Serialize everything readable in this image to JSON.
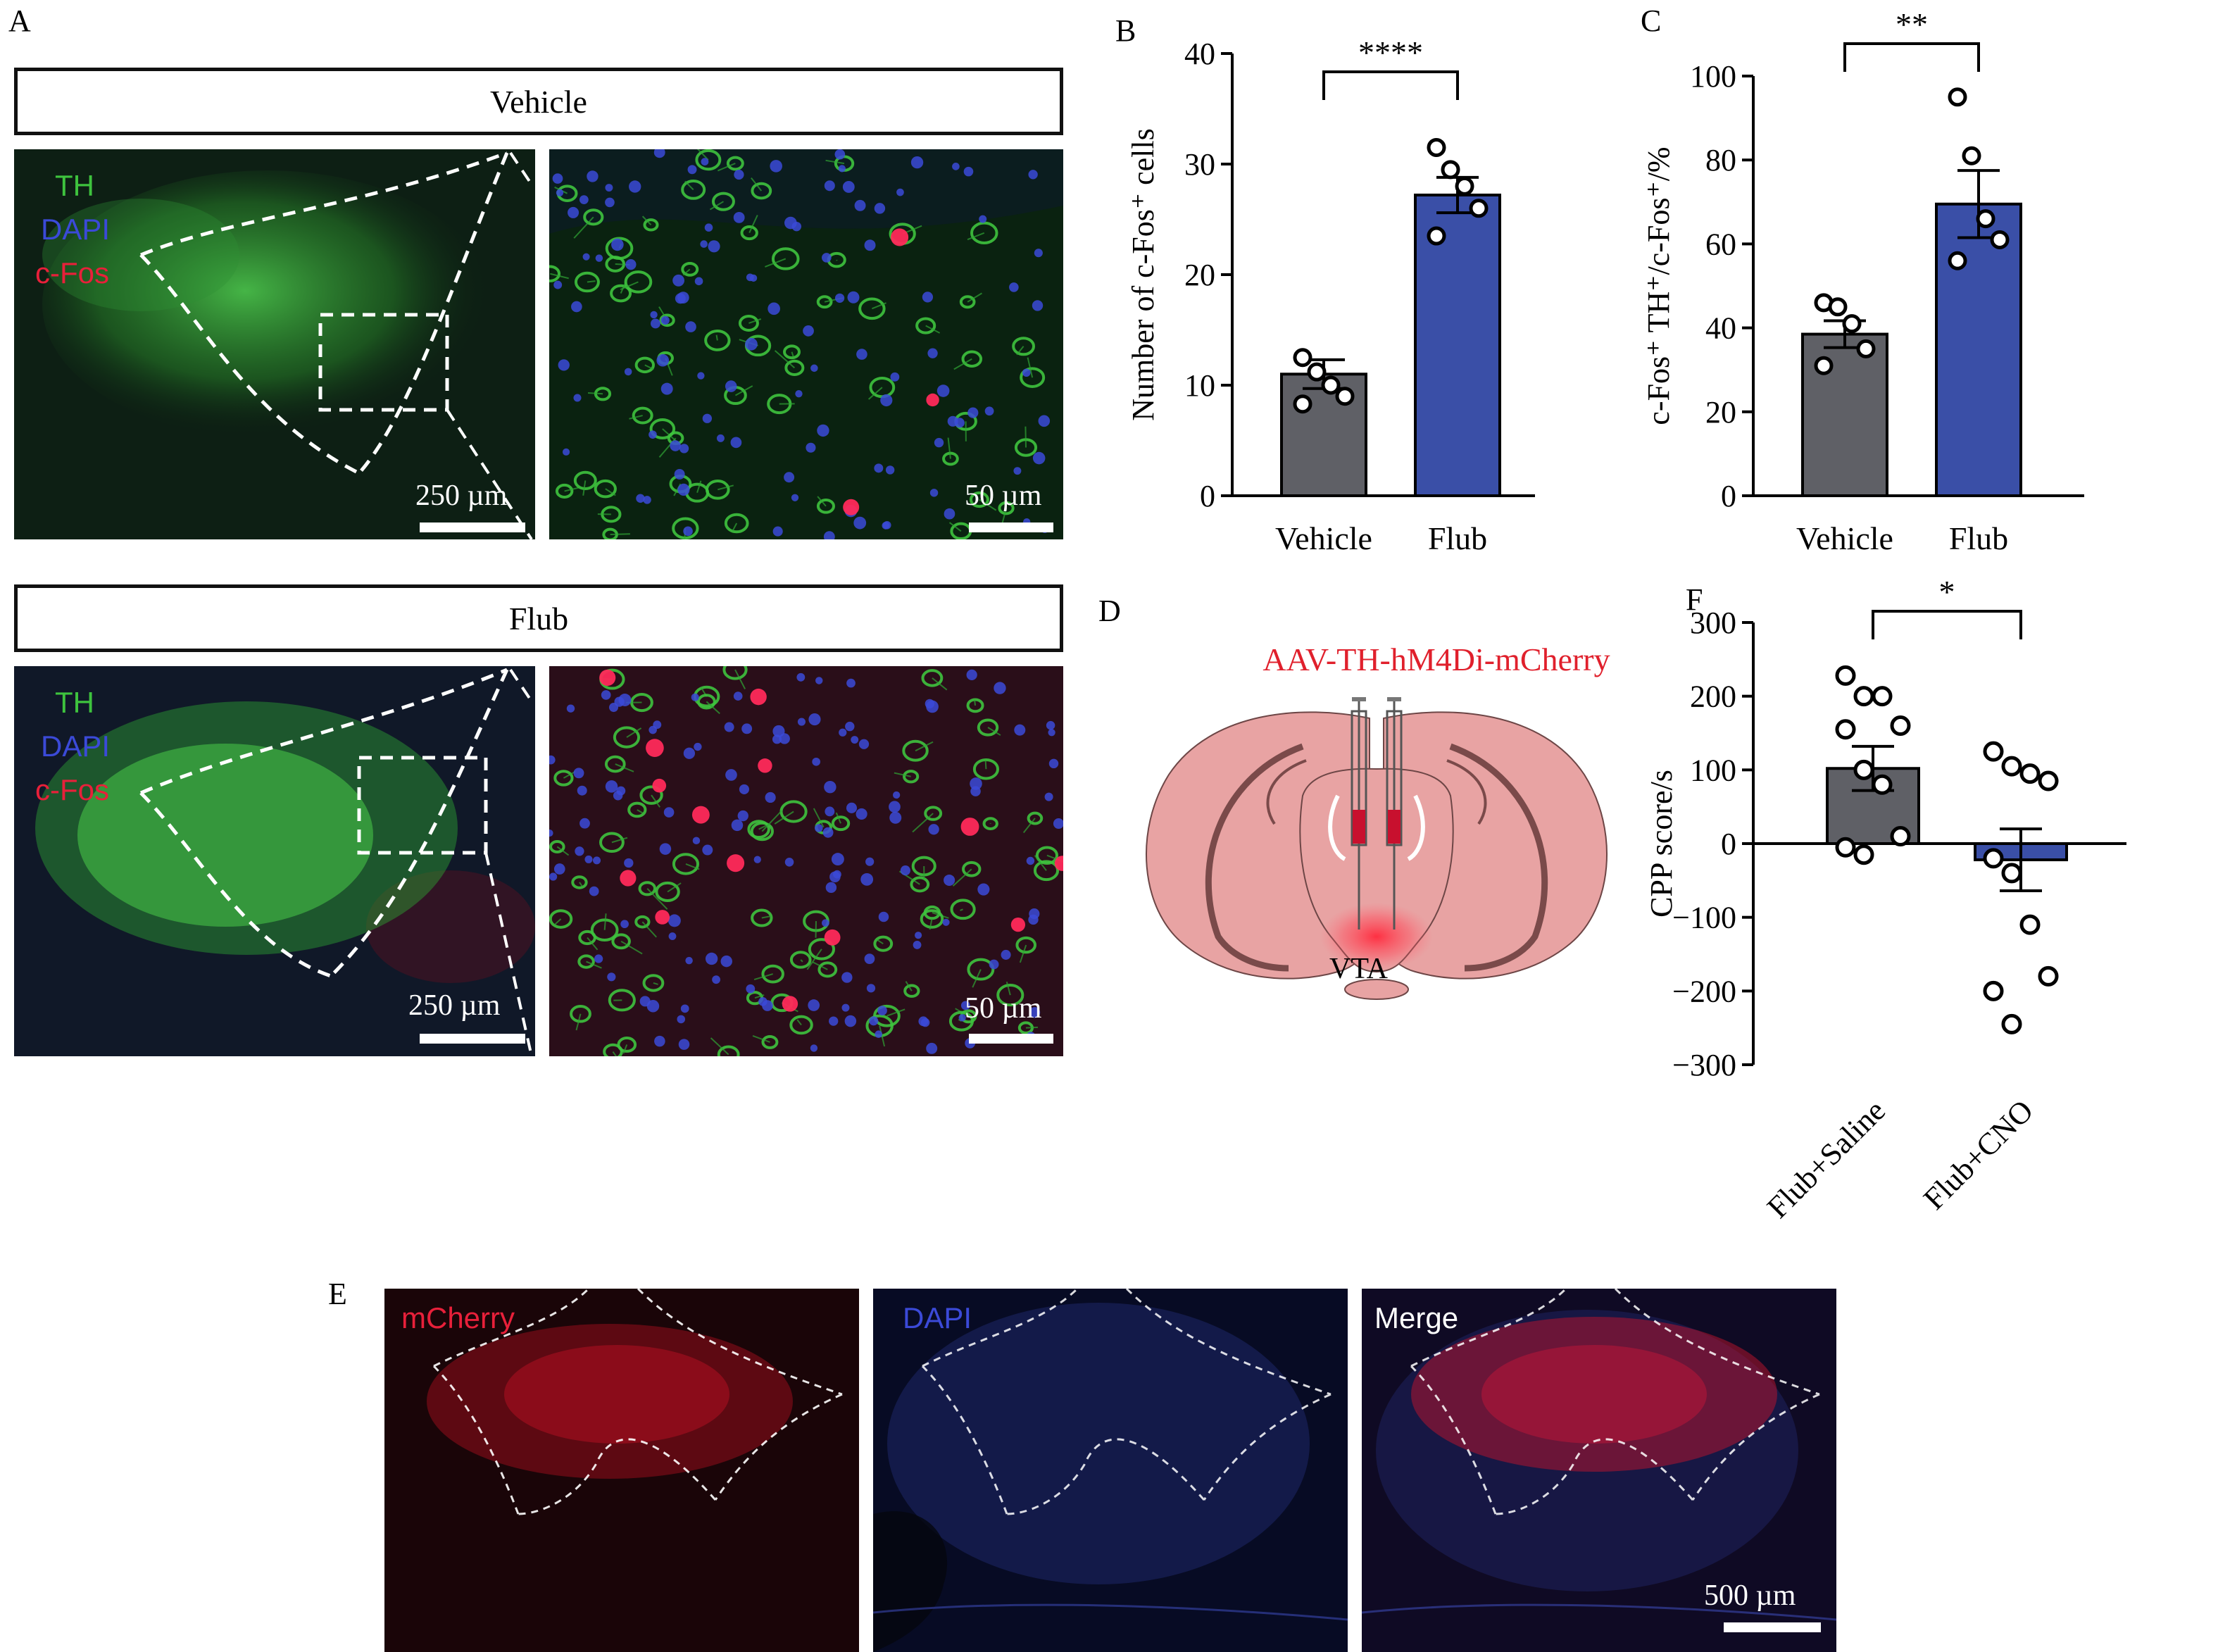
{
  "panel_letters": {
    "A": "A",
    "B": "B",
    "C": "C",
    "D": "D",
    "E": "E",
    "F": "F"
  },
  "panel_a": {
    "vehicle_title": "Vehicle",
    "flub_title": "Flub",
    "channels": {
      "th": "TH",
      "dapi": "DAPI",
      "cfos": "c-Fos"
    },
    "scale_low": "250 µm",
    "scale_high": "50 µm",
    "colors": {
      "th": "#3ec33e",
      "dapi": "#3b4ad8",
      "cfos": "#e8203a"
    }
  },
  "panel_d": {
    "vector_label": "AAV-TH-hM4Di-mCherry",
    "region_label": "VTA",
    "colors": {
      "brain": "#e8a3a3",
      "outline": "#6d4646",
      "virus": "#e0202c"
    }
  },
  "panel_e": {
    "labels": {
      "mcherry": "mCherry",
      "dapi": "DAPI",
      "merge": "Merge"
    },
    "scale": "500 µm"
  },
  "chart_data": [
    {
      "panel": "B",
      "type": "bar",
      "categories": [
        "Vehicle",
        "Flub"
      ],
      "values": [
        11.0,
        27.2
      ],
      "sem": [
        1.3,
        1.6
      ],
      "points": [
        [
          12.5,
          11.2,
          10.0,
          9.0,
          8.3
        ],
        [
          31.5,
          29.5,
          28.0,
          26.0,
          23.5
        ]
      ],
      "ylabel": "Number of c-Fos⁺ cells",
      "ylim": [
        0,
        40
      ],
      "yticks": [
        0,
        10,
        20,
        30,
        40
      ],
      "significance": "****",
      "colors": [
        "#5f6066",
        "#3a4fa7"
      ]
    },
    {
      "panel": "C",
      "type": "bar",
      "categories": [
        "Vehicle",
        "Flub"
      ],
      "values": [
        38.5,
        69.5
      ],
      "sem": [
        3.2,
        8.0
      ],
      "points": [
        [
          46.0,
          45.0,
          41.0,
          35.0,
          31.0
        ],
        [
          95.0,
          81.0,
          66.0,
          61.0,
          56.0
        ]
      ],
      "ylabel": "c-Fos⁺ TH⁺/c-Fos⁺/%",
      "ylim": [
        0,
        100
      ],
      "yticks": [
        0,
        20,
        40,
        60,
        80,
        100
      ],
      "significance": "**",
      "colors": [
        "#5f6066",
        "#3a4fa7"
      ]
    },
    {
      "panel": "F",
      "type": "bar",
      "categories": [
        "Flub+Saline",
        "Flub+CNO"
      ],
      "values": [
        102,
        -22
      ],
      "sem": [
        30,
        42
      ],
      "points": [
        [
          228,
          200,
          200,
          160,
          155,
          100,
          80,
          10,
          -5,
          -15
        ],
        [
          125,
          105,
          95,
          85,
          -20,
          -40,
          -110,
          -180,
          -200,
          -245
        ]
      ],
      "ylabel": "CPP score/s",
      "ylim": [
        -300,
        300
      ],
      "yticks": [
        -300,
        -200,
        -100,
        0,
        100,
        200,
        300
      ],
      "ytick_labels": [
        "−300",
        "−200",
        "−100",
        "0",
        "100",
        "200",
        "300"
      ],
      "significance": "*",
      "colors": [
        "#5f6066",
        "#3a4fa7"
      ]
    }
  ]
}
